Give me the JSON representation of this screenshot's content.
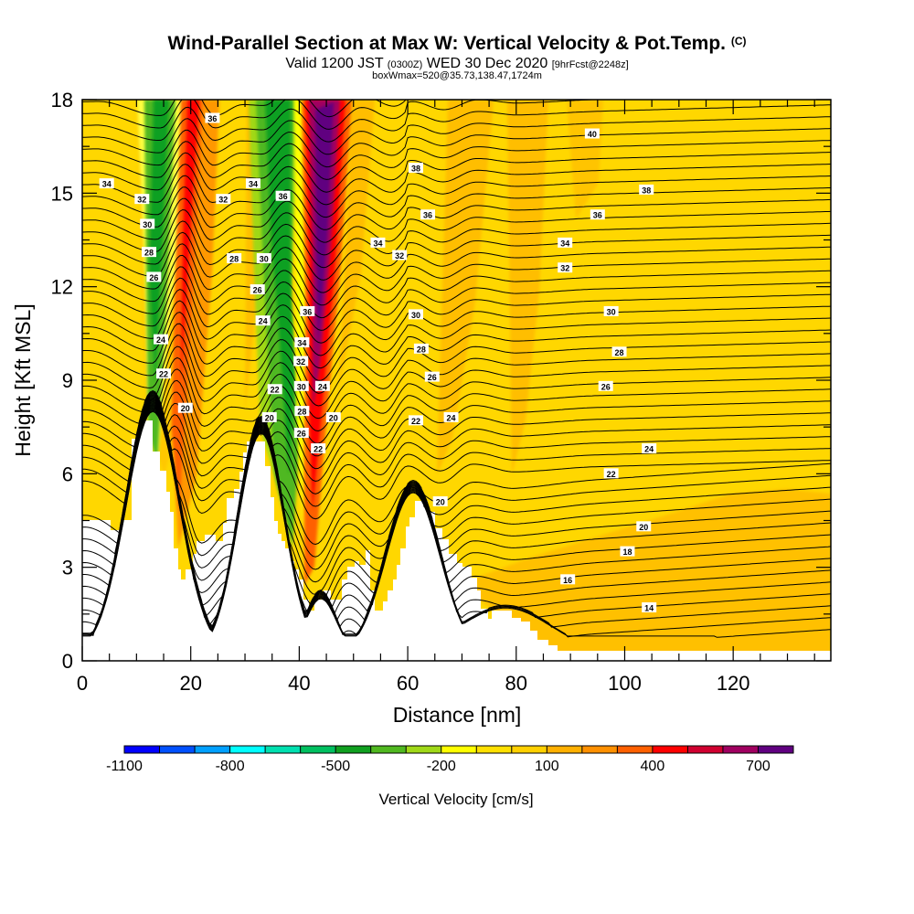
{
  "title": "Wind-Parallel Section at Max W: Vertical Velocity & Pot.Temp.",
  "title_mark": "(C)",
  "subtitle_main": "Valid 1200 JST",
  "subtitle_z": "(0300Z)",
  "subtitle_date": "WED 30 Dec 2020",
  "subtitle_fcst": "[9hrFcst@2248z]",
  "subtitle2": "boxWmax=520@35.73,138.47,1724m",
  "colors": {
    "background_fill": "#ffd700",
    "terrain": "#ffffff",
    "contour": "#000000"
  },
  "chart_data": {
    "type": "heatmap",
    "xlabel": "Distance [nm]",
    "ylabel": "Height [Kft MSL]",
    "xlim": [
      0,
      138
    ],
    "ylim": [
      0,
      18
    ],
    "x_ticks": [
      "0",
      "20",
      "40",
      "60",
      "80",
      "100",
      "120"
    ],
    "y_ticks": [
      "0",
      "3",
      "6",
      "9",
      "12",
      "15",
      "18"
    ],
    "colorbar": {
      "title": "Vertical Velocity [cm/s]",
      "tick_labels": [
        "-1100",
        "-800",
        "-500",
        "-200",
        "100",
        "400",
        "700"
      ],
      "tick_values": [
        -1100,
        -800,
        -500,
        -200,
        100,
        400,
        700
      ],
      "levels": [
        -1100,
        -1000,
        -900,
        -800,
        -700,
        -600,
        -500,
        -400,
        -300,
        -200,
        -100,
        0,
        100,
        200,
        300,
        400,
        500,
        600,
        700,
        800
      ],
      "colors": [
        "#0000ff",
        "#0050ff",
        "#00a0ff",
        "#00ffff",
        "#00e0b0",
        "#00c060",
        "#10a020",
        "#50b820",
        "#a0d818",
        "#ffff00",
        "#ffe000",
        "#ffd000",
        "#ffb000",
        "#ff9000",
        "#ff6000",
        "#ff0000",
        "#d00030",
        "#a00060",
        "#600080"
      ]
    },
    "contour_labels": [
      {
        "text": "34",
        "x": 4.5,
        "y": 15.3
      },
      {
        "text": "32",
        "x": 11,
        "y": 14.8
      },
      {
        "text": "30",
        "x": 12,
        "y": 14
      },
      {
        "text": "28",
        "x": 12.3,
        "y": 13.1
      },
      {
        "text": "26",
        "x": 13.2,
        "y": 12.3
      },
      {
        "text": "24",
        "x": 14.5,
        "y": 10.3
      },
      {
        "text": "22",
        "x": 15,
        "y": 9.2
      },
      {
        "text": "20",
        "x": 19,
        "y": 8.1
      },
      {
        "text": "36",
        "x": 24,
        "y": 17.4
      },
      {
        "text": "32",
        "x": 26,
        "y": 14.8
      },
      {
        "text": "28",
        "x": 28,
        "y": 12.9
      },
      {
        "text": "26",
        "x": 32.3,
        "y": 11.9
      },
      {
        "text": "24",
        "x": 33.3,
        "y": 10.9
      },
      {
        "text": "34",
        "x": 31.5,
        "y": 15.3
      },
      {
        "text": "36",
        "x": 37,
        "y": 14.9
      },
      {
        "text": "30",
        "x": 33.5,
        "y": 12.9
      },
      {
        "text": "22",
        "x": 35.5,
        "y": 8.7
      },
      {
        "text": "20",
        "x": 34.5,
        "y": 7.8
      },
      {
        "text": "36",
        "x": 41.5,
        "y": 11.2
      },
      {
        "text": "34",
        "x": 40.5,
        "y": 10.2
      },
      {
        "text": "32",
        "x": 40.3,
        "y": 9.6
      },
      {
        "text": "30",
        "x": 40.4,
        "y": 8.8
      },
      {
        "text": "28",
        "x": 40.5,
        "y": 8
      },
      {
        "text": "26",
        "x": 40.4,
        "y": 7.3
      },
      {
        "text": "24",
        "x": 44.3,
        "y": 8.8
      },
      {
        "text": "22",
        "x": 43.5,
        "y": 6.8
      },
      {
        "text": "20",
        "x": 46.3,
        "y": 7.8
      },
      {
        "text": "38",
        "x": 61.5,
        "y": 15.8
      },
      {
        "text": "36",
        "x": 63.7,
        "y": 14.3
      },
      {
        "text": "34",
        "x": 54.5,
        "y": 13.4
      },
      {
        "text": "32",
        "x": 58.5,
        "y": 13
      },
      {
        "text": "30",
        "x": 61.5,
        "y": 11.1
      },
      {
        "text": "28",
        "x": 62.5,
        "y": 10
      },
      {
        "text": "26",
        "x": 64.5,
        "y": 9.1
      },
      {
        "text": "22",
        "x": 61.5,
        "y": 7.7
      },
      {
        "text": "24",
        "x": 68,
        "y": 7.8
      },
      {
        "text": "20",
        "x": 66,
        "y": 5.1
      },
      {
        "text": "40",
        "x": 94,
        "y": 16.9
      },
      {
        "text": "38",
        "x": 104,
        "y": 15.1
      },
      {
        "text": "36",
        "x": 95,
        "y": 14.3
      },
      {
        "text": "34",
        "x": 89,
        "y": 13.4
      },
      {
        "text": "32",
        "x": 89,
        "y": 12.6
      },
      {
        "text": "30",
        "x": 97.5,
        "y": 11.2
      },
      {
        "text": "28",
        "x": 99,
        "y": 9.9
      },
      {
        "text": "26",
        "x": 96.5,
        "y": 8.8
      },
      {
        "text": "24",
        "x": 104.5,
        "y": 6.8
      },
      {
        "text": "22",
        "x": 97.5,
        "y": 6
      },
      {
        "text": "20",
        "x": 103.5,
        "y": 4.3
      },
      {
        "text": "18",
        "x": 100.5,
        "y": 3.5
      },
      {
        "text": "16",
        "x": 89.5,
        "y": 2.6
      },
      {
        "text": "14",
        "x": 104.5,
        "y": 1.7
      }
    ]
  }
}
